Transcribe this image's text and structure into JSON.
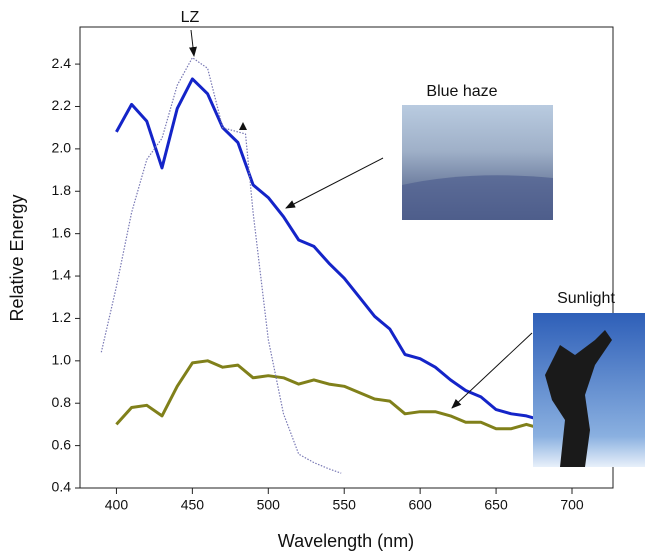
{
  "chart_data": {
    "type": "line",
    "x_label": "Wavelength (nm)",
    "y_label": "Relative Energy",
    "xlim": [
      376,
      727
    ],
    "ylim": [
      0.4,
      2.575
    ],
    "xticks": [
      400,
      450,
      500,
      550,
      600,
      650,
      700
    ],
    "yticks": [
      0.4,
      0.6,
      0.8,
      {
        "value": 1,
        "label": "1.0"
      },
      1.2,
      1.4,
      1.6,
      1.8,
      {
        "value": 2,
        "label": "2.0"
      },
      2.2,
      2.4
    ],
    "series": [
      {
        "name": "Blue haze",
        "color": "#1424c8",
        "style": "solid",
        "x": [
          400,
          410,
          420,
          430,
          440,
          450,
          460,
          470,
          480,
          490,
          500,
          510,
          520,
          530,
          540,
          550,
          560,
          570,
          580,
          590,
          600,
          610,
          620,
          630,
          640,
          650,
          660,
          670,
          680
        ],
        "values": [
          2.08,
          2.21,
          2.13,
          1.91,
          2.19,
          2.33,
          2.26,
          2.1,
          2.03,
          1.83,
          1.77,
          1.68,
          1.57,
          1.54,
          1.46,
          1.39,
          1.3,
          1.21,
          1.15,
          1.03,
          1.01,
          0.97,
          0.91,
          0.86,
          0.83,
          0.77,
          0.75,
          0.74,
          0.72
        ]
      },
      {
        "name": "Sunlight",
        "color": "#80801a",
        "style": "solid",
        "x": [
          400,
          410,
          420,
          430,
          440,
          450,
          460,
          470,
          480,
          490,
          500,
          510,
          520,
          530,
          540,
          550,
          560,
          570,
          580,
          590,
          600,
          610,
          620,
          630,
          640,
          650,
          660,
          670,
          680
        ],
        "values": [
          0.7,
          0.78,
          0.79,
          0.74,
          0.88,
          0.99,
          1.0,
          0.97,
          0.98,
          0.92,
          0.93,
          0.92,
          0.89,
          0.91,
          0.89,
          0.88,
          0.85,
          0.82,
          0.81,
          0.75,
          0.76,
          0.76,
          0.74,
          0.71,
          0.71,
          0.68,
          0.68,
          0.7,
          0.68
        ]
      },
      {
        "name": "LZ",
        "color": "#7878b4",
        "style": "dotted",
        "x": [
          390,
          400,
          410,
          420,
          430,
          440,
          450,
          460,
          470,
          480,
          485,
          490,
          500,
          510,
          520,
          530,
          540,
          548
        ],
        "values": [
          1.04,
          1.35,
          1.7,
          1.95,
          2.05,
          2.3,
          2.43,
          2.38,
          2.1,
          2.08,
          2.07,
          1.7,
          1.1,
          0.75,
          0.56,
          0.52,
          0.49,
          0.47
        ]
      }
    ]
  }
}
